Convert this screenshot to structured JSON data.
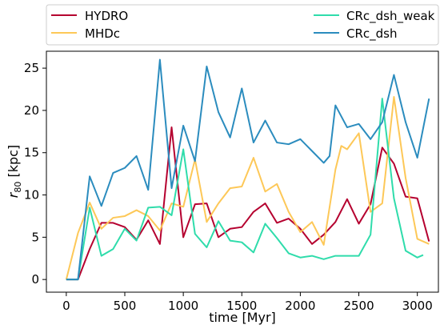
{
  "chart_data": {
    "type": "line",
    "xlabel": "time [Myr]",
    "ylabel": "r_80 [kpc]",
    "ylabel_main": "r",
    "ylabel_sub": "80",
    "ylabel_rest": " [kpc]",
    "xlim": [
      -170,
      3180
    ],
    "ylim": [
      -1.5,
      27
    ],
    "xticks": [
      0,
      500,
      1000,
      1500,
      2000,
      2500,
      3000
    ],
    "xtick_labels": [
      "0",
      "500",
      "1000",
      "1500",
      "2000",
      "2500",
      "3000"
    ],
    "yticks": [
      0,
      5,
      10,
      15,
      20,
      25
    ],
    "ytick_labels": [
      "0",
      "5",
      "10",
      "15",
      "20",
      "25"
    ],
    "grid": false,
    "legend_position": "above-plot, two columns",
    "series": [
      {
        "name": "HYDRO",
        "color": "#b5002f",
        "x": [
          0,
          100,
          200,
          300,
          400,
          500,
          600,
          700,
          800,
          900,
          1000,
          1100,
          1200,
          1300,
          1400,
          1500,
          1600,
          1700,
          1800,
          1900,
          2000,
          2100,
          2200,
          2300,
          2400,
          2500,
          2600,
          2700,
          2800,
          2900,
          3000,
          3100
        ],
        "values": [
          0.0,
          0.0,
          3.6,
          6.7,
          6.7,
          6.2,
          4.7,
          7.0,
          4.2,
          18.0,
          5.0,
          8.9,
          9.0,
          5.0,
          6.0,
          6.2,
          8.0,
          9.0,
          6.7,
          7.2,
          6.0,
          4.2,
          5.3,
          6.8,
          9.5,
          6.6,
          8.9,
          15.6,
          13.7,
          9.8,
          9.6,
          4.5
        ]
      },
      {
        "name": "MHDc",
        "color": "#fdc858",
        "x": [
          0,
          100,
          200,
          300,
          400,
          500,
          600,
          700,
          800,
          900,
          1000,
          1100,
          1200,
          1300,
          1400,
          1500,
          1600,
          1700,
          1800,
          1900,
          2000,
          2100,
          2200,
          2300,
          2350,
          2400,
          2500,
          2600,
          2700,
          2800,
          2900,
          3000,
          3100
        ],
        "values": [
          0.0,
          5.5,
          9.1,
          6.0,
          7.3,
          7.5,
          8.2,
          7.5,
          5.8,
          9.0,
          8.6,
          14.2,
          6.8,
          9.0,
          10.8,
          11.0,
          14.4,
          10.4,
          11.3,
          8.0,
          5.6,
          6.8,
          4.1,
          13.0,
          15.8,
          15.4,
          17.3,
          8.0,
          9.0,
          21.6,
          12.0,
          4.8,
          4.2
        ]
      },
      {
        "name": "CRc_dsh_weak",
        "color": "#2fdcab",
        "x": [
          0,
          100,
          200,
          300,
          400,
          500,
          600,
          700,
          800,
          900,
          1000,
          1100,
          1200,
          1300,
          1400,
          1500,
          1600,
          1700,
          1800,
          1900,
          2000,
          2100,
          2200,
          2300,
          2400,
          2500,
          2600,
          2700,
          2800,
          2900,
          3000,
          3050
        ],
        "values": [
          0.0,
          0.0,
          8.5,
          2.8,
          3.6,
          6.0,
          4.6,
          8.5,
          8.6,
          7.6,
          15.4,
          5.4,
          3.8,
          6.9,
          4.6,
          4.4,
          3.2,
          6.6,
          4.9,
          3.1,
          2.6,
          2.8,
          2.4,
          2.8,
          2.8,
          2.8,
          5.3,
          21.4,
          9.6,
          3.4,
          2.6,
          2.9
        ]
      },
      {
        "name": "CRc_dsh",
        "color": "#2b8cbe",
        "x": [
          0,
          100,
          200,
          300,
          400,
          500,
          600,
          700,
          800,
          900,
          1000,
          1100,
          1200,
          1300,
          1400,
          1500,
          1600,
          1700,
          1800,
          1900,
          2000,
          2100,
          2200,
          2250,
          2300,
          2400,
          2500,
          2600,
          2700,
          2800,
          2900,
          3000,
          3100
        ],
        "values": [
          0.0,
          0.0,
          12.2,
          8.7,
          12.6,
          13.2,
          14.6,
          10.6,
          26.0,
          10.8,
          18.2,
          14.0,
          25.2,
          19.8,
          16.8,
          22.6,
          16.2,
          18.8,
          16.2,
          16.0,
          16.6,
          15.2,
          13.8,
          14.6,
          20.6,
          18.0,
          18.4,
          16.6,
          18.6,
          24.2,
          18.6,
          14.4,
          21.4
        ]
      }
    ]
  }
}
